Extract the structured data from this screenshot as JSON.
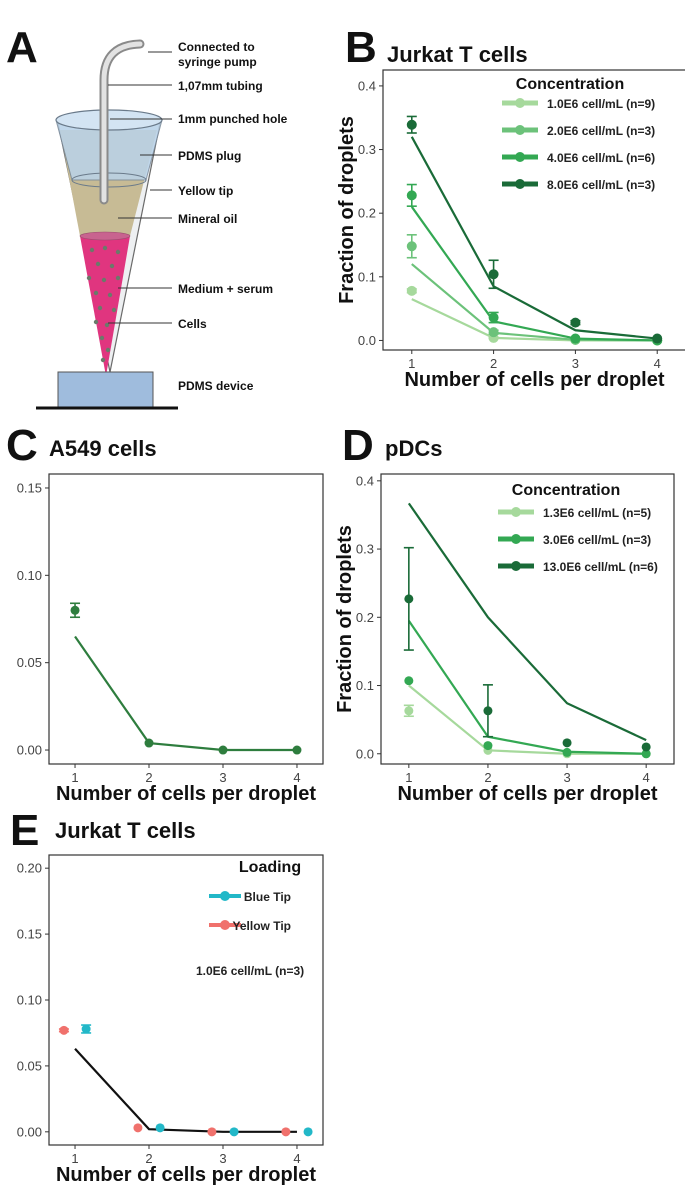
{
  "panel_letters": {
    "a": "A",
    "b": "B",
    "c": "C",
    "d": "D",
    "e": "E"
  },
  "diagram": {
    "labels": [
      "Connected to syringe pump",
      "1,07mm tubing",
      "1mm punched hole",
      "PDMS plug",
      "Yellow tip",
      "Mineral oil",
      "Medium + serum",
      "Cells",
      "PDMS device"
    ],
    "connected_line1": "Connected to",
    "connected_line2": "syringe pump",
    "tubing": "1,07mm tubing",
    "hole": "1mm punched hole",
    "plug": "PDMS plug",
    "tip": "Yellow tip",
    "oil": "Mineral oil",
    "medium": "Medium + serum",
    "cells": "Cells",
    "device": "PDMS device",
    "colors": {
      "plug": "#b9d3ea",
      "oil": "#c7bb95",
      "medium": "#e0357f",
      "device": "#9fbcdd"
    }
  },
  "chart_data": [
    {
      "panel": "B",
      "type": "line",
      "title": "Jurkat T cells",
      "xlabel": "Number of cells per droplet",
      "ylabel": "Fraction of droplets",
      "x": [
        1,
        2,
        3,
        4
      ],
      "xticks": [
        "1",
        "2",
        "3",
        "4"
      ],
      "ylim": [
        -0.015,
        0.425
      ],
      "yticks": [
        0.0,
        0.1,
        0.2,
        0.3,
        0.4
      ],
      "ytick_labels": [
        "0.0",
        "0.1",
        "0.2",
        "0.3",
        "0.4"
      ],
      "legend_title": "Concentration",
      "legend_position": "top-right",
      "series": [
        {
          "name": "1.0E6 cell/mL (n=9)",
          "color": "#a6d99c",
          "line": [
            0.065,
            0.004,
            0.0,
            0.0
          ],
          "points": [
            0.078,
            0.004,
            0.001,
            0.0
          ],
          "err": [
            0.003,
            0.001,
            0.0,
            0.0
          ]
        },
        {
          "name": "2.0E6 cell/mL (n=3)",
          "color": "#6cc27a",
          "line": [
            0.12,
            0.012,
            0.001,
            0.0
          ],
          "points": [
            0.148,
            0.013,
            0.001,
            0.0
          ],
          "err": [
            0.018,
            0.003,
            0.0,
            0.0
          ]
        },
        {
          "name": "4.0E6 cell/mL (n=6)",
          "color": "#33a853",
          "line": [
            0.21,
            0.03,
            0.003,
            0.0
          ],
          "points": [
            0.228,
            0.036,
            0.003,
            0.0
          ],
          "err": [
            0.017,
            0.008,
            0.0,
            0.0
          ]
        },
        {
          "name": "8.0E6 cell/mL (n=3)",
          "color": "#1a6b38",
          "line": [
            0.32,
            0.085,
            0.016,
            0.003
          ],
          "points": [
            0.339,
            0.104,
            0.028,
            0.003
          ],
          "err": [
            0.013,
            0.022,
            0.003,
            0.0
          ]
        }
      ]
    },
    {
      "panel": "C",
      "type": "line",
      "title": "A549 cells",
      "xlabel": "Number of cells per droplet",
      "ylabel": "",
      "x": [
        1,
        2,
        3,
        4
      ],
      "xticks": [
        "1",
        "2",
        "3",
        "4"
      ],
      "ylim": [
        -0.008,
        0.158
      ],
      "yticks": [
        0.0,
        0.05,
        0.1,
        0.15
      ],
      "ytick_labels": [
        "0.00",
        "0.05",
        "0.10",
        "0.15"
      ],
      "series": [
        {
          "name": "A549",
          "color": "#2e7d3e",
          "line": [
            0.065,
            0.004,
            0.0,
            0.0
          ],
          "points": [
            0.08,
            0.004,
            0.0,
            0.0
          ],
          "err": [
            0.004,
            0.0,
            0.0,
            0.0
          ]
        }
      ]
    },
    {
      "panel": "D",
      "type": "line",
      "title": "pDCs",
      "xlabel": "Number of cells per droplet",
      "ylabel": "Fraction of droplets",
      "x": [
        1,
        2,
        3,
        4
      ],
      "xticks": [
        "1",
        "2",
        "3",
        "4"
      ],
      "ylim": [
        -0.015,
        0.41
      ],
      "yticks": [
        0.0,
        0.1,
        0.2,
        0.3,
        0.4
      ],
      "ytick_labels": [
        "0.0",
        "0.1",
        "0.2",
        "0.3",
        "0.4"
      ],
      "legend_title": "Concentration",
      "legend_position": "top-right",
      "series": [
        {
          "name": "1.3E6 cell/mL (n=5)",
          "color": "#a6d99c",
          "line": [
            0.1,
            0.005,
            0.0,
            0.0
          ],
          "points": [
            0.063,
            0.005,
            0.0,
            0.0
          ],
          "err": [
            0.008,
            0.0,
            0.0,
            0.0
          ]
        },
        {
          "name": "3.0E6 cell/mL (n=3)",
          "color": "#33a853",
          "line": [
            0.195,
            0.025,
            0.003,
            0.0
          ],
          "points": [
            0.107,
            0.012,
            0.002,
            0.0
          ],
          "err": [
            0.0,
            0.0,
            0.0,
            0.0
          ]
        },
        {
          "name": "13.0E6 cell/mL (n=6)",
          "color": "#1a6b38",
          "line": [
            0.367,
            0.2,
            0.074,
            0.02
          ],
          "points": [
            0.227,
            0.063,
            0.016,
            0.01
          ],
          "err": [
            0.075,
            0.038,
            0.0,
            0.0
          ]
        }
      ]
    },
    {
      "panel": "E",
      "type": "line",
      "title": "Jurkat T cells",
      "xlabel": "Number of cells per droplet",
      "ylabel": "",
      "x": [
        1,
        2,
        3,
        4
      ],
      "xticks": [
        "1",
        "2",
        "3",
        "4"
      ],
      "ylim": [
        -0.01,
        0.21
      ],
      "yticks": [
        0.0,
        0.05,
        0.1,
        0.15,
        0.2
      ],
      "ytick_labels": [
        "0.00",
        "0.05",
        "0.10",
        "0.15",
        "0.20"
      ],
      "legend_title": "Loading",
      "legend_position": "top-right",
      "legend_note": "1.0E6 cell/mL (n=3)",
      "line": {
        "color": "#111111",
        "values": [
          0.063,
          0.002,
          0.0,
          0.0
        ]
      },
      "series": [
        {
          "name": "Blue Tip",
          "color": "#22b8c8",
          "offset": 0.15,
          "points": [
            0.078,
            0.003,
            0.0,
            0.0
          ],
          "err": [
            0.003,
            0.0,
            0.0,
            0.0
          ]
        },
        {
          "name": "Yellow Tip",
          "color": "#f0716c",
          "offset": -0.15,
          "points": [
            0.077,
            0.003,
            0.0,
            0.0
          ],
          "err": [
            0.001,
            0.0,
            0.0,
            0.0
          ]
        }
      ]
    }
  ]
}
